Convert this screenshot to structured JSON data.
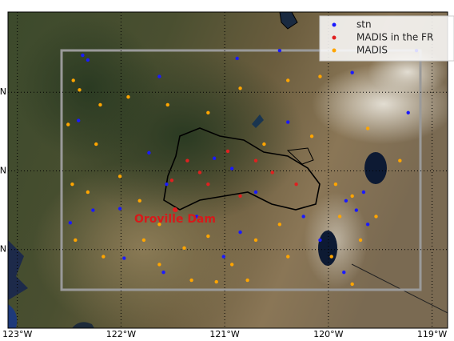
{
  "chart_data": {
    "type": "scatter",
    "xlim": [
      -123.09,
      -118.85
    ],
    "ylim": [
      38.0,
      42.02
    ],
    "xticks": [
      {
        "value": -123,
        "label": "123°W"
      },
      {
        "value": -122,
        "label": "122°W"
      },
      {
        "value": -121,
        "label": "121°W"
      },
      {
        "value": -120,
        "label": "120°W"
      },
      {
        "value": -119,
        "label": "119°W"
      }
    ],
    "yticks": [
      {
        "value": 41,
        "label": "N"
      },
      {
        "value": 40,
        "label": "N"
      },
      {
        "value": 39,
        "label": "N"
      }
    ],
    "grid": true,
    "legend": "upper right",
    "annotation": "Oroville Dam",
    "series": [
      {
        "name": "stn",
        "color": "#1a1aff",
        "x": [
          -122.37,
          -122.32,
          -122.41,
          -121.63,
          -120.88,
          -120.47,
          -119.77,
          -120.39,
          -121.1,
          -120.93,
          -121.73,
          -122.27,
          -122.49,
          -121.97,
          -121.56,
          -120.7,
          -121.27,
          -120.85,
          -120.24,
          -119.83,
          -119.73,
          -119.62,
          -119.66,
          -119.85,
          -121.59,
          -120.08,
          -119.15,
          -119.23,
          -122.01,
          -121.01
        ],
        "y": [
          41.47,
          41.41,
          40.64,
          41.2,
          41.43,
          41.53,
          41.25,
          40.62,
          40.16,
          40.03,
          40.23,
          39.5,
          39.34,
          38.89,
          39.83,
          39.73,
          39.42,
          39.22,
          39.42,
          39.62,
          39.5,
          39.32,
          39.73,
          38.71,
          38.71,
          39.12,
          41.53,
          40.74,
          39.52,
          38.91
        ]
      },
      {
        "name": "MADIS in the FR",
        "color": "#e02020",
        "x": [
          -121.51,
          -121.36,
          -121.16,
          -120.85,
          -120.54,
          -120.97,
          -121.47,
          -120.31,
          -121.24,
          -120.7
        ],
        "y": [
          39.88,
          40.13,
          39.83,
          39.68,
          39.98,
          40.25,
          39.5,
          39.83,
          39.98,
          40.13
        ]
      },
      {
        "name": "MADIS",
        "color": "#ffa500",
        "x": [
          -122.46,
          -122.4,
          -122.51,
          -122.2,
          -121.93,
          -121.55,
          -121.16,
          -120.85,
          -120.39,
          -120.08,
          -120.16,
          -122.24,
          -122.47,
          -122.32,
          -122.44,
          -122.17,
          -121.78,
          -121.39,
          -121.16,
          -120.93,
          -120.7,
          -120.47,
          -121.32,
          -121.08,
          -120.78,
          -120.39,
          -119.93,
          -119.77,
          -119.89,
          -119.69,
          -119.54,
          -119.97,
          -119.77,
          -121.63,
          -122.01,
          -120.62,
          -119.62,
          -119.31,
          -121.82,
          -121.63
        ],
        "y": [
          41.15,
          41.03,
          40.59,
          40.84,
          40.94,
          40.84,
          40.74,
          41.05,
          41.15,
          41.2,
          40.44,
          40.34,
          39.83,
          39.73,
          39.12,
          38.91,
          39.12,
          39.02,
          39.17,
          38.81,
          39.12,
          39.32,
          38.61,
          38.59,
          38.61,
          38.91,
          39.83,
          39.68,
          39.42,
          39.12,
          39.42,
          38.91,
          38.56,
          39.32,
          39.93,
          40.34,
          40.54,
          40.13,
          39.62,
          38.81
        ]
      }
    ]
  }
}
